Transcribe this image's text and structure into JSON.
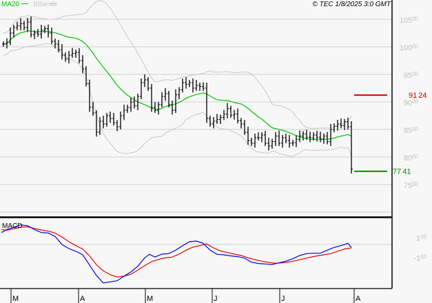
{
  "header": {
    "legend_ma": "MA20",
    "legend_bbands": "BBands",
    "copyright": "© TEC 1/8/2025 3:0 GMT"
  },
  "colors": {
    "ma": "#00c000",
    "bbands": "#c8c8c8",
    "price_bars": "#000000",
    "resistance": "#d00000",
    "support": "#009000",
    "macd": "#0000e0",
    "signal": "#e00000",
    "axis_labels": "#c0c0c0"
  },
  "chart_data": [
    {
      "type": "bar",
      "subtype": "ohlc",
      "title": "",
      "ylim": [
        70,
        107
      ],
      "grid": true,
      "y_ticks": [
        {
          "value": 105,
          "int": "105",
          "dec": "00"
        },
        {
          "value": 100,
          "int": "100",
          "dec": "00"
        },
        {
          "value": 95,
          "int": "95",
          "dec": "00"
        },
        {
          "value": 90,
          "int": "90",
          "dec": "00"
        },
        {
          "value": 85,
          "int": "85",
          "dec": "00"
        },
        {
          "value": 80,
          "int": "80",
          "dec": "00"
        },
        {
          "value": 75,
          "int": "75",
          "dec": "00"
        }
      ],
      "extra_gridline": 70,
      "x_ticks": [
        "M",
        "A",
        "M",
        "J",
        "J",
        "A"
      ],
      "close": [
        100.5,
        100.8,
        102.5,
        103.5,
        103.8,
        104.2,
        103.5,
        104.5,
        102.2,
        102.5,
        102.3,
        103,
        103.3,
        102.5,
        101,
        100.5,
        99.5,
        98.5,
        97.8,
        98.5,
        98.8,
        99,
        97.5,
        96,
        93.3,
        89,
        88,
        84.5,
        86.5,
        86,
        87.5,
        87,
        86.2,
        85.5,
        87.5,
        88.5,
        89,
        90,
        89.3,
        91,
        93.5,
        94,
        92.5,
        89,
        88.5,
        89.5,
        91,
        91.5,
        89.5,
        88.5,
        91.3,
        92.2,
        93.5,
        93.2,
        93.5,
        92.5,
        93,
        92.8,
        92.5,
        87,
        86,
        86.5,
        86.8,
        87.2,
        87.8,
        88.8,
        87.6,
        87.8,
        86.6,
        86,
        84.5,
        83,
        82.5,
        83.5,
        83.5,
        84,
        82.5,
        82,
        82.8,
        83.8,
        82.5,
        83.5,
        83,
        82.5,
        82.6,
        83.2,
        83.8,
        84.2,
        83.6,
        83.5,
        84,
        83.6,
        83.2,
        83.8,
        82.8,
        85,
        85.6,
        86,
        85.7,
        86.4,
        85.5,
        77.8
      ],
      "series": [
        {
          "name": "MA20",
          "kind": "moving-average",
          "period": 20
        },
        {
          "name": "BBands",
          "kind": "bollinger",
          "period": 20,
          "stddev": 2
        }
      ],
      "levels": [
        {
          "label_int": "91",
          "label_dec": "24",
          "value": 91.24,
          "kind": "resistance"
        },
        {
          "label_int": "77",
          "label_dec": "41",
          "value": 77.41,
          "kind": "support"
        }
      ]
    },
    {
      "type": "line",
      "title": "MACD",
      "y_ticks": [
        {
          "value": 1,
          "int": "1",
          "dec": "00"
        },
        {
          "value": -1,
          "int": "-1",
          "dec": "00"
        }
      ],
      "macd": [
        [
          -0.6,
          1.54
        ],
        [
          1,
          1.84
        ],
        [
          3,
          2.07
        ],
        [
          5,
          2.3
        ],
        [
          7,
          2.23
        ],
        [
          9,
          1.84
        ],
        [
          11,
          1.54
        ],
        [
          13,
          1.49
        ],
        [
          15,
          1.15
        ],
        [
          17,
          0.34
        ],
        [
          19,
          -0.07
        ],
        [
          21,
          -0.34
        ],
        [
          23,
          -0.69
        ],
        [
          25,
          -1.72
        ],
        [
          27,
          -2.76
        ],
        [
          29,
          -3.52
        ],
        [
          31,
          -3.4
        ],
        [
          33,
          -3.29
        ],
        [
          35,
          -2.83
        ],
        [
          37,
          -2.41
        ],
        [
          39,
          -1.84
        ],
        [
          41,
          -0.99
        ],
        [
          42.4,
          -0.64
        ],
        [
          44,
          -0.92
        ],
        [
          46,
          -0.62
        ],
        [
          48,
          -0.57
        ],
        [
          50,
          -0.23
        ],
        [
          52,
          0.23
        ],
        [
          54,
          0.62
        ],
        [
          56,
          0.69
        ],
        [
          58,
          0.46
        ],
        [
          60,
          -0.23
        ],
        [
          62,
          -0.64
        ],
        [
          64,
          -0.69
        ],
        [
          66,
          -0.8
        ],
        [
          68,
          -0.87
        ],
        [
          70,
          -1.03
        ],
        [
          72,
          -1.43
        ],
        [
          74,
          -1.56
        ],
        [
          76,
          -1.61
        ],
        [
          78,
          -1.66
        ],
        [
          80,
          -1.49
        ],
        [
          82,
          -1.33
        ],
        [
          84,
          -1.08
        ],
        [
          86,
          -0.76
        ],
        [
          88,
          -0.57
        ],
        [
          90,
          -0.53
        ],
        [
          92,
          -0.53
        ],
        [
          94,
          -0.23
        ],
        [
          96,
          0.05
        ],
        [
          98,
          0.23
        ],
        [
          100,
          0.46
        ],
        [
          101,
          0.05
        ]
      ],
      "signal": [
        [
          -0.6,
          1.84
        ],
        [
          1,
          1.77
        ],
        [
          3,
          1.91
        ],
        [
          5,
          2.07
        ],
        [
          7,
          2.11
        ],
        [
          9,
          1.95
        ],
        [
          11,
          1.79
        ],
        [
          13,
          1.68
        ],
        [
          15,
          1.49
        ],
        [
          17,
          1.08
        ],
        [
          19,
          0.62
        ],
        [
          21,
          0.23
        ],
        [
          23,
          -0.11
        ],
        [
          25,
          -0.8
        ],
        [
          27,
          -1.68
        ],
        [
          29,
          -2.3
        ],
        [
          31,
          -2.69
        ],
        [
          33,
          -2.92
        ],
        [
          35,
          -2.83
        ],
        [
          37,
          -2.64
        ],
        [
          39,
          -2.23
        ],
        [
          41,
          -1.77
        ],
        [
          43,
          -1.38
        ],
        [
          45,
          -1.15
        ],
        [
          47,
          -0.99
        ],
        [
          49,
          -0.92
        ],
        [
          51,
          -0.62
        ],
        [
          53,
          -0.23
        ],
        [
          55,
          0.07
        ],
        [
          57,
          0.23
        ],
        [
          59,
          0.39
        ],
        [
          61,
          0.0
        ],
        [
          63,
          -0.3
        ],
        [
          65,
          -0.46
        ],
        [
          67,
          -0.62
        ],
        [
          69,
          -0.76
        ],
        [
          71,
          -0.99
        ],
        [
          73,
          -1.17
        ],
        [
          75,
          -1.33
        ],
        [
          77,
          -1.45
        ],
        [
          79,
          -1.54
        ],
        [
          81,
          -1.49
        ],
        [
          83,
          -1.4
        ],
        [
          85,
          -1.26
        ],
        [
          87,
          -1.1
        ],
        [
          89,
          -0.94
        ],
        [
          91,
          -0.8
        ],
        [
          93,
          -0.69
        ],
        [
          95,
          -0.57
        ],
        [
          97,
          -0.34
        ],
        [
          99,
          -0.11
        ],
        [
          101,
          0.0
        ]
      ]
    }
  ]
}
